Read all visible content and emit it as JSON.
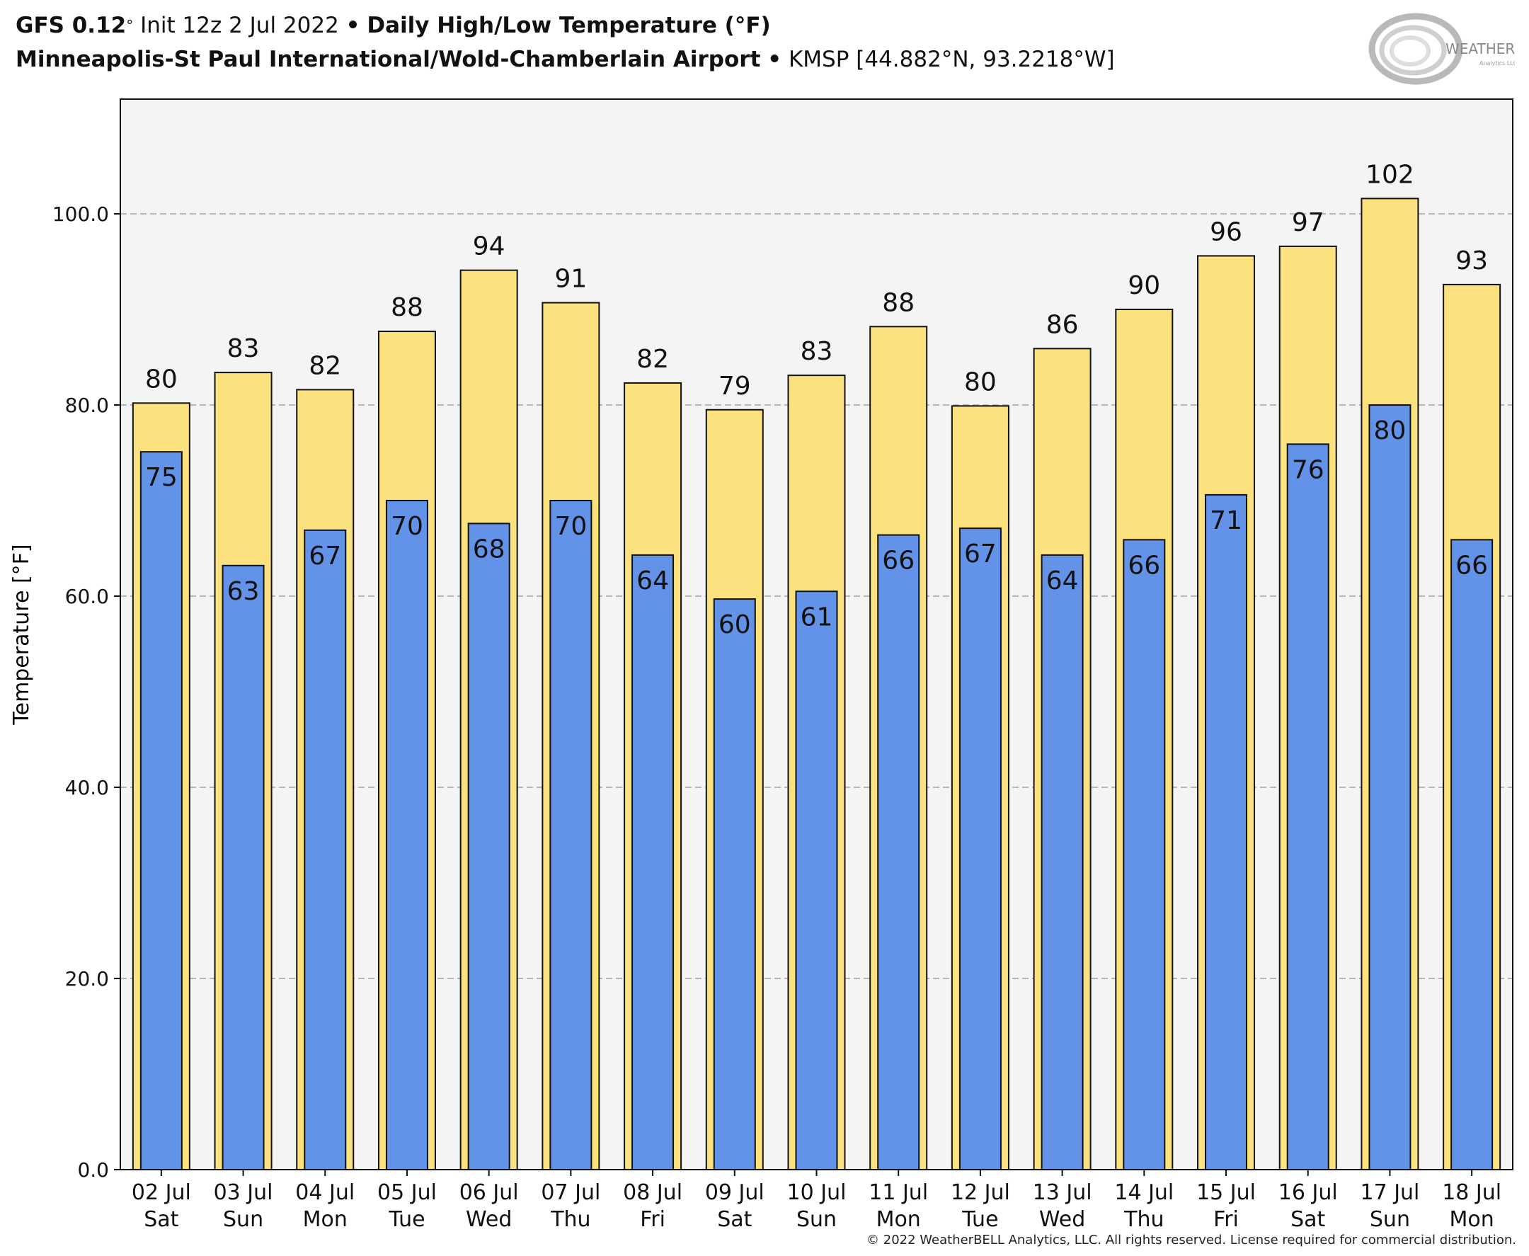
{
  "header": {
    "model": "GFS 0.12",
    "model_deg": "°",
    "init": "Init 12z 2 Jul 2022",
    "bullet": "•",
    "product": "Daily High/Low Temperature (°F)",
    "station_name": "Minneapolis-St Paul International/Wold-Chamberlain Airport",
    "station_id": "KMSP [44.882°N, 93.2218°W]"
  },
  "logo": {
    "text_main": "WEATHERBELL",
    "text_sub": "Analytics LLC",
    "icon": "swirl-logo"
  },
  "copyright": "© 2022 WeatherBELL Analytics, LLC. All rights reserved. License required for commercial distribution.",
  "colors": {
    "high": "#fbe27e",
    "low": "#6393e8",
    "plot_bg": "#f4f4f4",
    "grid": "#b8b8b8",
    "bar_edge": "#111111"
  },
  "chart_data": {
    "type": "bar",
    "ylabel": "Temperature [°F]",
    "ylim": [
      0,
      112
    ],
    "yticks": [
      0,
      20,
      40,
      60,
      80,
      100
    ],
    "ytick_labels": [
      "0.0",
      "20.0",
      "40.0",
      "60.0",
      "80.0",
      "100.0"
    ],
    "grid": true,
    "categories": [
      "02 Jul|Sat",
      "03 Jul|Sun",
      "04 Jul|Mon",
      "05 Jul|Tue",
      "06 Jul|Wed",
      "07 Jul|Thu",
      "08 Jul|Fri",
      "09 Jul|Sat",
      "10 Jul|Sun",
      "11 Jul|Mon",
      "12 Jul|Tue",
      "13 Jul|Wed",
      "14 Jul|Thu",
      "15 Jul|Fri",
      "16 Jul|Sat",
      "17 Jul|Sun",
      "18 Jul|Mon"
    ],
    "series": [
      {
        "values": [
          80.2,
          83.4,
          81.6,
          87.7,
          94.1,
          90.7,
          82.3,
          79.5,
          83.1,
          88.2,
          79.9,
          85.9,
          90.0,
          95.6,
          96.6,
          101.6,
          92.6
        ],
        "labels": [
          "80",
          "83",
          "82",
          "88",
          "94",
          "91",
          "82",
          "79",
          "83",
          "88",
          "80",
          "86",
          "90",
          "96",
          "97",
          "102",
          "93"
        ]
      },
      {
        "values": [
          75.1,
          63.2,
          66.9,
          70.0,
          67.6,
          70.0,
          64.3,
          59.7,
          60.5,
          66.4,
          67.1,
          64.3,
          65.9,
          70.6,
          75.9,
          80.0,
          65.9
        ],
        "labels": [
          "75",
          "63",
          "67",
          "70",
          "68",
          "70",
          "64",
          "60",
          "61",
          "66",
          "67",
          "64",
          "66",
          "71",
          "76",
          "80",
          "66"
        ]
      }
    ]
  }
}
